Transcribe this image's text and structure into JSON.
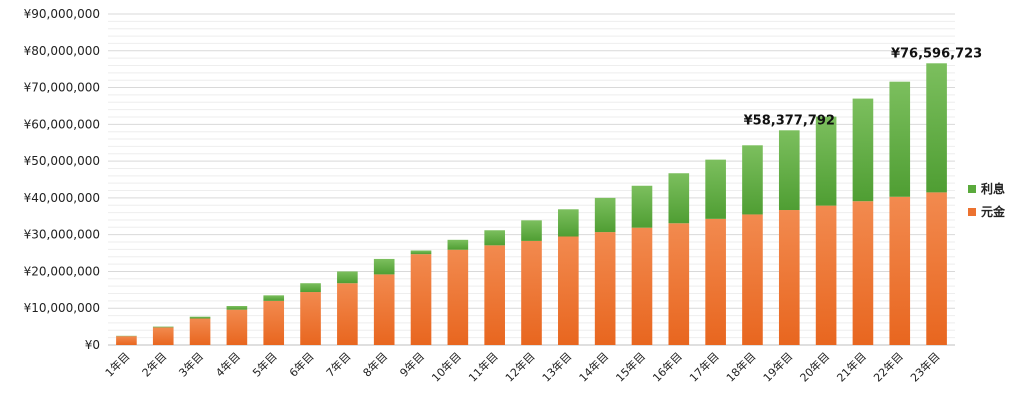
{
  "colors": {
    "principal_top": "#f28a4f",
    "principal_bottom": "#e8661f",
    "interest_top": "#7cbf5e",
    "interest_bottom": "#4f9e33",
    "grid_major": "#d9d9d9",
    "grid_minor": "#eeeeee",
    "axis": "#bfbfbf"
  },
  "chart_data": {
    "type": "bar",
    "stacked": true,
    "title": "",
    "xlabel": "",
    "ylabel": "",
    "ylim": [
      0,
      90000000
    ],
    "y_ticks": [
      0,
      10000000,
      20000000,
      30000000,
      40000000,
      50000000,
      60000000,
      70000000,
      80000000,
      90000000
    ],
    "y_tick_labels": [
      "¥0",
      "¥10,000,000",
      "¥20,000,000",
      "¥30,000,000",
      "¥40,000,000",
      "¥50,000,000",
      "¥60,000,000",
      "¥70,000,000",
      "¥80,000,000",
      "¥90,000,000"
    ],
    "grid": true,
    "legend_position": "right",
    "categories": [
      "1年目",
      "2年目",
      "3年目",
      "4年目",
      "5年目",
      "6年目",
      "7年目",
      "8年目",
      "9年目",
      "10年目",
      "11年目",
      "12年目",
      "13年目",
      "14年目",
      "15年目",
      "16年目",
      "17年目",
      "18年目",
      "19年目",
      "20年目",
      "21年目",
      "22年目",
      "23年目"
    ],
    "series": [
      {
        "name": "元金",
        "values": [
          2400000,
          4800000,
          7200000,
          9600000,
          12000000,
          14400000,
          16800000,
          19200000,
          24700000,
          25900000,
          27100000,
          28300000,
          29500000,
          30700000,
          31900000,
          33100000,
          34300000,
          35500000,
          36700000,
          37900000,
          39100000,
          40300000,
          41500000
        ]
      },
      {
        "name": "利息",
        "values": [
          100000,
          200000,
          500000,
          1000000,
          1500000,
          2400000,
          3200000,
          4200000,
          1000000,
          2700000,
          4100000,
          5600000,
          7400000,
          9300000,
          11400000,
          13600000,
          16100000,
          18800000,
          21677792,
          24200000,
          27900000,
          31300000,
          35096723
        ]
      }
    ],
    "annotations": [
      {
        "category": "19年目",
        "text": "¥58,377,792"
      },
      {
        "category": "23年目",
        "text": "¥76,596,723"
      }
    ]
  }
}
